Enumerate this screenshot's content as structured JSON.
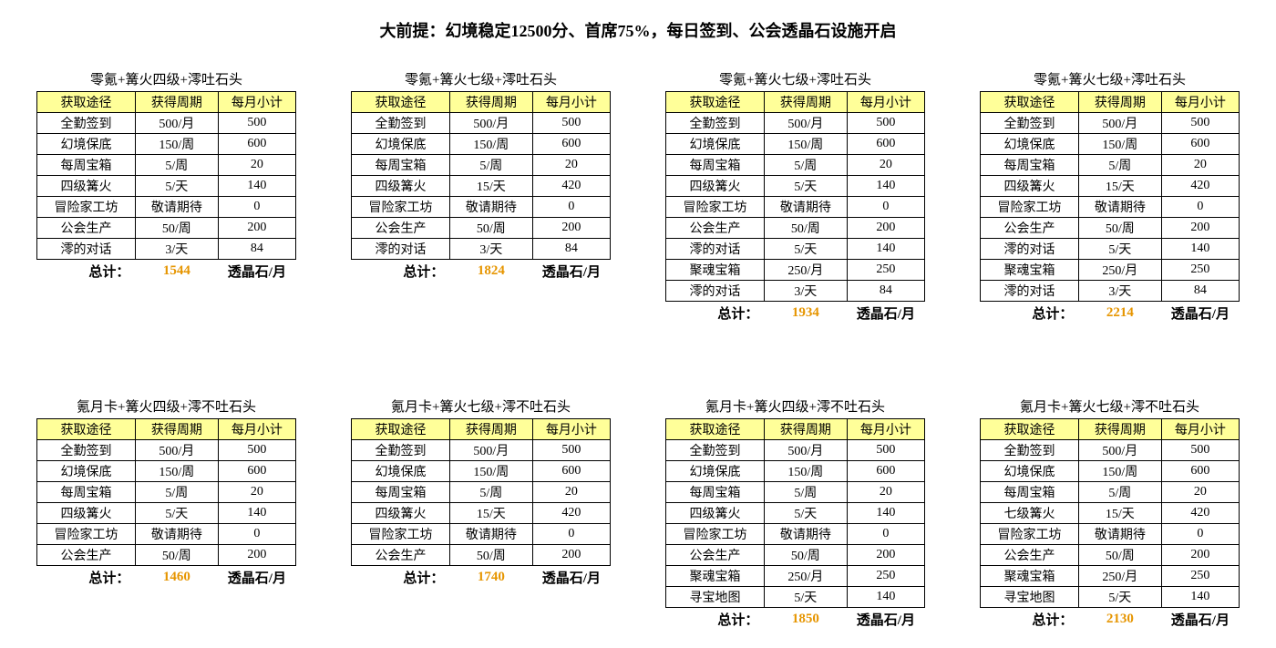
{
  "page_title": "大前提：幻境稳定12500分、首席75%，每日签到、公会透晶石设施开启",
  "headers": [
    "获取途径",
    "获得周期",
    "每月小计"
  ],
  "total_label": "总计：",
  "total_unit": "透晶石/月",
  "colors": {
    "header_bg": "#ffff99",
    "border": "#000000",
    "total_value": "#e69500",
    "text": "#000000",
    "background": "#ffffff"
  },
  "tables": [
    {
      "title": "零氪+篝火四级+澪吐石头",
      "rows": [
        [
          "全勤签到",
          "500/月",
          "500"
        ],
        [
          "幻境保底",
          "150/周",
          "600"
        ],
        [
          "每周宝箱",
          "5/周",
          "20"
        ],
        [
          "四级篝火",
          "5/天",
          "140"
        ],
        [
          "冒险家工坊",
          "敬请期待",
          "0"
        ],
        [
          "公会生产",
          "50/周",
          "200"
        ],
        [
          "澪的对话",
          "3/天",
          "84"
        ]
      ],
      "total": "1544"
    },
    {
      "title": "零氪+篝火七级+澪吐石头",
      "rows": [
        [
          "全勤签到",
          "500/月",
          "500"
        ],
        [
          "幻境保底",
          "150/周",
          "600"
        ],
        [
          "每周宝箱",
          "5/周",
          "20"
        ],
        [
          "四级篝火",
          "15/天",
          "420"
        ],
        [
          "冒险家工坊",
          "敬请期待",
          "0"
        ],
        [
          "公会生产",
          "50/周",
          "200"
        ],
        [
          "澪的对话",
          "3/天",
          "84"
        ]
      ],
      "total": "1824"
    },
    {
      "title": "零氪+篝火七级+澪吐石头",
      "rows": [
        [
          "全勤签到",
          "500/月",
          "500"
        ],
        [
          "幻境保底",
          "150/周",
          "600"
        ],
        [
          "每周宝箱",
          "5/周",
          "20"
        ],
        [
          "四级篝火",
          "5/天",
          "140"
        ],
        [
          "冒险家工坊",
          "敬请期待",
          "0"
        ],
        [
          "公会生产",
          "50/周",
          "200"
        ],
        [
          "澪的对话",
          "5/天",
          "140"
        ],
        [
          "聚魂宝箱",
          "250/月",
          "250"
        ],
        [
          "澪的对话",
          "3/天",
          "84"
        ]
      ],
      "total": "1934"
    },
    {
      "title": "零氪+篝火七级+澪吐石头",
      "rows": [
        [
          "全勤签到",
          "500/月",
          "500"
        ],
        [
          "幻境保底",
          "150/周",
          "600"
        ],
        [
          "每周宝箱",
          "5/周",
          "20"
        ],
        [
          "四级篝火",
          "15/天",
          "420"
        ],
        [
          "冒险家工坊",
          "敬请期待",
          "0"
        ],
        [
          "公会生产",
          "50/周",
          "200"
        ],
        [
          "澪的对话",
          "5/天",
          "140"
        ],
        [
          "聚魂宝箱",
          "250/月",
          "250"
        ],
        [
          "澪的对话",
          "3/天",
          "84"
        ]
      ],
      "total": "2214"
    },
    {
      "title": "氪月卡+篝火四级+澪不吐石头",
      "rows": [
        [
          "全勤签到",
          "500/月",
          "500"
        ],
        [
          "幻境保底",
          "150/周",
          "600"
        ],
        [
          "每周宝箱",
          "5/周",
          "20"
        ],
        [
          "四级篝火",
          "5/天",
          "140"
        ],
        [
          "冒险家工坊",
          "敬请期待",
          "0"
        ],
        [
          "公会生产",
          "50/周",
          "200"
        ]
      ],
      "total": "1460"
    },
    {
      "title": "氪月卡+篝火七级+澪不吐石头",
      "rows": [
        [
          "全勤签到",
          "500/月",
          "500"
        ],
        [
          "幻境保底",
          "150/周",
          "600"
        ],
        [
          "每周宝箱",
          "5/周",
          "20"
        ],
        [
          "四级篝火",
          "15/天",
          "420"
        ],
        [
          "冒险家工坊",
          "敬请期待",
          "0"
        ],
        [
          "公会生产",
          "50/周",
          "200"
        ]
      ],
      "total": "1740"
    },
    {
      "title": "氪月卡+篝火四级+澪不吐石头",
      "rows": [
        [
          "全勤签到",
          "500/月",
          "500"
        ],
        [
          "幻境保底",
          "150/周",
          "600"
        ],
        [
          "每周宝箱",
          "5/周",
          "20"
        ],
        [
          "四级篝火",
          "5/天",
          "140"
        ],
        [
          "冒险家工坊",
          "敬请期待",
          "0"
        ],
        [
          "公会生产",
          "50/周",
          "200"
        ],
        [
          "聚魂宝箱",
          "250/月",
          "250"
        ],
        [
          "寻宝地图",
          "5/天",
          "140"
        ]
      ],
      "total": "1850"
    },
    {
      "title": "氪月卡+篝火七级+澪不吐石头",
      "rows": [
        [
          "全勤签到",
          "500/月",
          "500"
        ],
        [
          "幻境保底",
          "150/周",
          "600"
        ],
        [
          "每周宝箱",
          "5/周",
          "20"
        ],
        [
          "七级篝火",
          "15/天",
          "420"
        ],
        [
          "冒险家工坊",
          "敬请期待",
          "0"
        ],
        [
          "公会生产",
          "50/周",
          "200"
        ],
        [
          "聚魂宝箱",
          "250/月",
          "250"
        ],
        [
          "寻宝地图",
          "5/天",
          "140"
        ]
      ],
      "total": "2130"
    }
  ]
}
